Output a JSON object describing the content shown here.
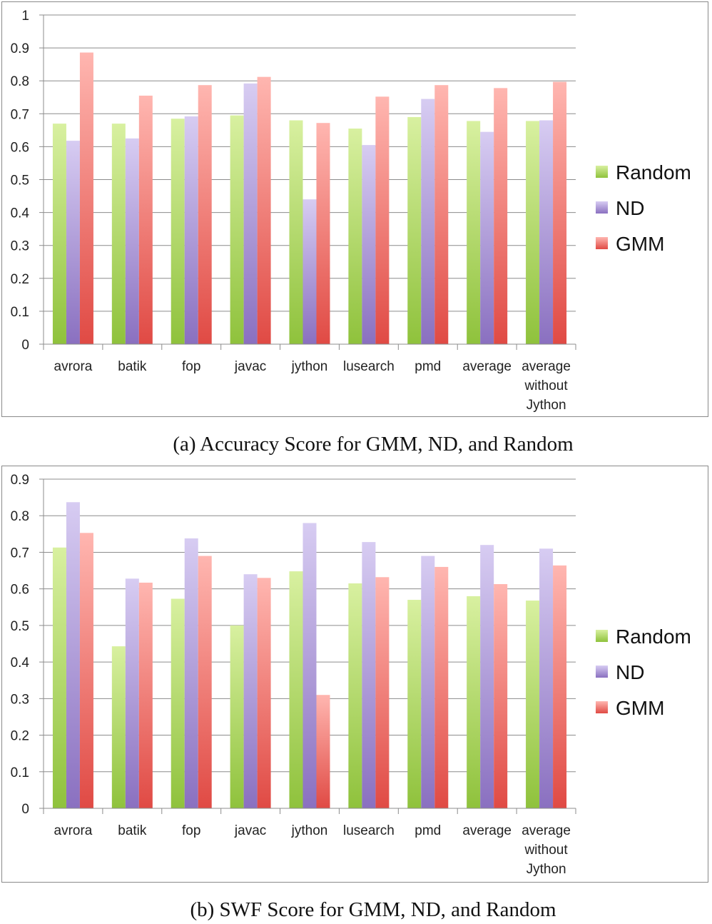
{
  "colors": {
    "Random": [
      "#d8f0a0",
      "#8fc23c"
    ],
    "ND": [
      "#d7ccf2",
      "#8a70c0"
    ],
    "GMM": [
      "#ffb6b0",
      "#e04a44"
    ]
  },
  "chart_data": [
    {
      "type": "bar",
      "title": "",
      "xlabel": "",
      "ylabel": "",
      "ylim": [
        0,
        1
      ],
      "yticks": [
        "0",
        "0.1",
        "0.2",
        "0.3",
        "0.4",
        "0.5",
        "0.6",
        "0.7",
        "0.8",
        "0.9",
        "1"
      ],
      "grid": true,
      "legend": "right",
      "categories": [
        [
          "avrora"
        ],
        [
          "batik"
        ],
        [
          "fop"
        ],
        [
          "javac"
        ],
        [
          "jython"
        ],
        [
          "lusearch"
        ],
        [
          "pmd"
        ],
        [
          "average"
        ],
        [
          "average",
          "without",
          "Jython"
        ]
      ],
      "series": [
        {
          "name": "Random",
          "values": [
            0.67,
            0.67,
            0.685,
            0.695,
            0.68,
            0.655,
            0.69,
            0.678,
            0.678
          ]
        },
        {
          "name": "ND",
          "values": [
            0.618,
            0.625,
            0.692,
            0.792,
            0.44,
            0.605,
            0.745,
            0.645,
            0.68
          ]
        },
        {
          "name": "GMM",
          "values": [
            0.886,
            0.755,
            0.787,
            0.812,
            0.672,
            0.752,
            0.787,
            0.778,
            0.797
          ]
        }
      ]
    },
    {
      "type": "bar",
      "title": "",
      "xlabel": "",
      "ylabel": "",
      "ylim": [
        0,
        0.9
      ],
      "yticks": [
        "0",
        "0.1",
        "0.2",
        "0.3",
        "0.4",
        "0.5",
        "0.6",
        "0.7",
        "0.8",
        "0.9"
      ],
      "grid": true,
      "legend": "right",
      "categories": [
        [
          "avrora"
        ],
        [
          "batik"
        ],
        [
          "fop"
        ],
        [
          "javac"
        ],
        [
          "jython"
        ],
        [
          "lusearch"
        ],
        [
          "pmd"
        ],
        [
          "average"
        ],
        [
          "average",
          "without",
          "Jython"
        ]
      ],
      "series": [
        {
          "name": "Random",
          "values": [
            0.713,
            0.443,
            0.573,
            0.5,
            0.648,
            0.615,
            0.57,
            0.58,
            0.568
          ]
        },
        {
          "name": "ND",
          "values": [
            0.837,
            0.628,
            0.738,
            0.64,
            0.78,
            0.728,
            0.69,
            0.72,
            0.71
          ]
        },
        {
          "name": "GMM",
          "values": [
            0.753,
            0.617,
            0.69,
            0.63,
            0.31,
            0.632,
            0.66,
            0.613,
            0.664
          ]
        }
      ]
    }
  ],
  "captions": {
    "a": "(a) Accuracy Score for GMM, ND, and Random",
    "b": "(b) SWF Score for GMM, ND, and Random"
  }
}
